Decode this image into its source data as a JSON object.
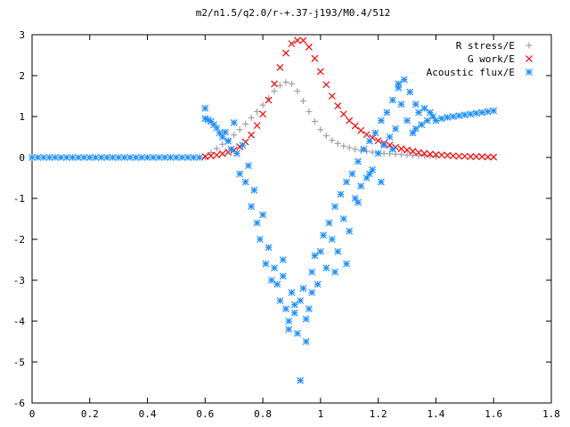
{
  "chart_data": {
    "type": "scatter",
    "title": "m2/n1.5/q2.0/r-+.37-j193/M0.4/512",
    "xlabel": "",
    "ylabel": "",
    "xlim": [
      0,
      1.8
    ],
    "ylim": [
      -6,
      3
    ],
    "xticks": [
      0,
      0.2,
      0.4,
      0.6,
      0.8,
      1,
      1.2,
      1.4,
      1.6,
      1.8
    ],
    "xtick_labels": [
      "0",
      "0.2",
      "0.4",
      "0.6",
      "0.8",
      "1",
      "1.2",
      "1.4",
      "1.6",
      "1.8"
    ],
    "yticks": [
      3,
      2,
      1,
      0,
      -1,
      -2,
      -3,
      -4,
      -5,
      -6
    ],
    "ytick_labels": [
      "3",
      "2",
      "1",
      "0",
      "-1",
      "-2",
      "-3",
      "-4",
      "-5",
      "-6"
    ],
    "grid": false,
    "legend_position": "top-right",
    "series": [
      {
        "name": "R stress/E",
        "marker": "plus",
        "color": "#a0a0a0",
        "x": [
          0.6,
          0.62,
          0.64,
          0.66,
          0.68,
          0.7,
          0.72,
          0.74,
          0.76,
          0.78,
          0.8,
          0.82,
          0.84,
          0.86,
          0.88,
          0.9,
          0.92,
          0.94,
          0.96,
          0.98,
          1.0,
          1.02,
          1.04,
          1.06,
          1.08,
          1.1,
          1.12,
          1.14,
          1.16,
          1.18,
          1.2,
          1.22,
          1.24,
          1.26,
          1.28,
          1.3,
          1.32,
          1.34,
          1.36,
          1.38,
          1.4
        ],
        "y": [
          0.0,
          0.12,
          0.22,
          0.32,
          0.42,
          0.55,
          0.68,
          0.82,
          0.97,
          1.12,
          1.28,
          1.45,
          1.62,
          1.76,
          1.84,
          1.8,
          1.62,
          1.38,
          1.12,
          0.88,
          0.68,
          0.53,
          0.42,
          0.34,
          0.28,
          0.24,
          0.2,
          0.17,
          0.15,
          0.13,
          0.11,
          0.1,
          0.09,
          0.08,
          0.07,
          0.06,
          0.05,
          0.04,
          0.04,
          0.03,
          0.02
        ]
      },
      {
        "name": "G work/E",
        "marker": "cross",
        "color": "#ff0000",
        "x": [
          0.6,
          0.62,
          0.64,
          0.66,
          0.68,
          0.7,
          0.72,
          0.74,
          0.76,
          0.78,
          0.8,
          0.82,
          0.84,
          0.86,
          0.88,
          0.9,
          0.92,
          0.94,
          0.96,
          0.98,
          1.0,
          1.02,
          1.04,
          1.06,
          1.08,
          1.1,
          1.12,
          1.14,
          1.16,
          1.18,
          1.2,
          1.22,
          1.24,
          1.26,
          1.28,
          1.3,
          1.32,
          1.34,
          1.36,
          1.38,
          1.4,
          1.42,
          1.44,
          1.46,
          1.48,
          1.5,
          1.52,
          1.54,
          1.56,
          1.58,
          1.6
        ],
        "y": [
          0.02,
          0.04,
          0.06,
          0.09,
          0.13,
          0.18,
          0.26,
          0.38,
          0.55,
          0.78,
          1.06,
          1.4,
          1.8,
          2.2,
          2.55,
          2.78,
          2.86,
          2.86,
          2.7,
          2.42,
          2.1,
          1.78,
          1.5,
          1.26,
          1.06,
          0.9,
          0.77,
          0.66,
          0.56,
          0.48,
          0.41,
          0.35,
          0.3,
          0.25,
          0.21,
          0.18,
          0.15,
          0.12,
          0.1,
          0.08,
          0.07,
          0.06,
          0.05,
          0.04,
          0.03,
          0.03,
          0.02,
          0.02,
          0.02,
          0.01,
          0.01
        ]
      },
      {
        "name": "Acoustic flux/E",
        "marker": "star",
        "color": "#1e90ff",
        "x": [
          0.0,
          0.02,
          0.04,
          0.06,
          0.08,
          0.1,
          0.12,
          0.14,
          0.16,
          0.18,
          0.2,
          0.22,
          0.24,
          0.26,
          0.28,
          0.3,
          0.32,
          0.34,
          0.36,
          0.38,
          0.4,
          0.42,
          0.44,
          0.46,
          0.48,
          0.5,
          0.52,
          0.54,
          0.56,
          0.58,
          0.6,
          0.6,
          0.61,
          0.62,
          0.63,
          0.64,
          0.65,
          0.66,
          0.67,
          0.68,
          0.69,
          0.7,
          0.71,
          0.72,
          0.73,
          0.74,
          0.75,
          0.76,
          0.77,
          0.78,
          0.79,
          0.8,
          0.81,
          0.82,
          0.83,
          0.84,
          0.85,
          0.86,
          0.87,
          0.88,
          0.89,
          0.9,
          0.91,
          0.92,
          0.93,
          0.94,
          0.95,
          0.96,
          0.97,
          0.98,
          0.99,
          1.0,
          1.01,
          1.02,
          1.03,
          1.04,
          1.05,
          1.06,
          1.07,
          1.08,
          1.09,
          1.1,
          1.11,
          1.12,
          1.13,
          1.14,
          1.15,
          1.16,
          1.17,
          1.18,
          1.19,
          1.2,
          1.21,
          1.22,
          1.23,
          1.24,
          1.25,
          1.26,
          1.27,
          1.28,
          1.29,
          1.3,
          1.31,
          1.32,
          1.33,
          1.34,
          1.35,
          1.36,
          1.37,
          1.38,
          1.39,
          1.4,
          1.42,
          1.44,
          1.46,
          1.48,
          1.5,
          1.52,
          1.54,
          1.56,
          1.58,
          1.6,
          0.93,
          0.91,
          0.95,
          0.97,
          0.89,
          0.87,
          1.05,
          1.13,
          1.21,
          1.27,
          1.33,
          1.09,
          1.17,
          1.25
        ],
        "y": [
          0.0,
          0.0,
          0.0,
          0.0,
          0.0,
          0.0,
          0.0,
          0.0,
          0.0,
          0.0,
          0.0,
          0.0,
          0.0,
          0.0,
          0.0,
          0.0,
          0.0,
          0.0,
          0.0,
          0.0,
          0.0,
          0.0,
          0.0,
          0.0,
          0.0,
          0.0,
          0.0,
          0.0,
          0.0,
          0.0,
          1.2,
          0.95,
          0.92,
          0.88,
          0.8,
          0.72,
          0.6,
          0.5,
          0.62,
          0.4,
          0.2,
          0.85,
          0.1,
          -0.4,
          0.3,
          -0.6,
          -0.2,
          -1.2,
          -0.8,
          -1.6,
          -2.0,
          -1.4,
          -2.6,
          -2.2,
          -3.0,
          -2.7,
          -3.1,
          -3.5,
          -2.9,
          -3.7,
          -4.0,
          -3.3,
          -3.8,
          -4.3,
          -3.5,
          -3.2,
          -4.5,
          -3.7,
          -2.8,
          -2.4,
          -3.1,
          -2.3,
          -1.9,
          -2.7,
          -1.6,
          -2.0,
          -1.2,
          -2.3,
          -0.9,
          -1.5,
          -0.6,
          -1.8,
          -0.4,
          -1.0,
          -0.1,
          -0.7,
          0.2,
          -0.5,
          0.4,
          -0.3,
          0.6,
          0.1,
          0.9,
          0.3,
          1.1,
          0.5,
          1.4,
          0.7,
          1.7,
          1.3,
          1.9,
          0.9,
          1.6,
          0.6,
          1.3,
          1.1,
          0.8,
          1.2,
          0.9,
          1.1,
          1.0,
          0.9,
          0.95,
          0.98,
          1.0,
          1.02,
          1.04,
          1.06,
          1.08,
          1.1,
          1.12,
          1.14,
          -5.45,
          -3.6,
          -3.95,
          -3.3,
          -4.2,
          -2.5,
          -2.8,
          -1.1,
          -0.6,
          1.8,
          0.7,
          -2.6,
          -0.4,
          0.2
        ]
      }
    ]
  }
}
